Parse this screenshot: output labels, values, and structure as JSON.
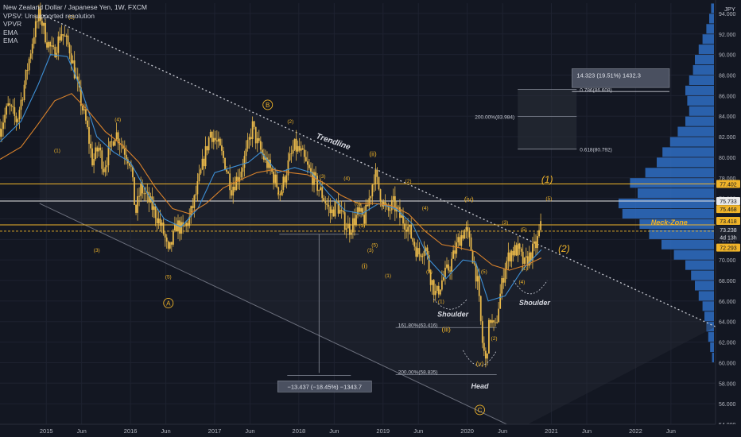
{
  "legend": {
    "title": "New Zealand Dollar / Japanese Yen, 1W, FXCM",
    "indicators": [
      "VPSV: Unsupported resolution",
      "VPVR",
      "EMA",
      "EMA"
    ]
  },
  "currency": "JPY",
  "colors": {
    "background": "#131722",
    "candle": "#e8b84a",
    "ema_fast": "#3d8fd6",
    "ema_slow": "#d9822b",
    "level_line": "#f0b429",
    "white_line": "#e8e8e8",
    "trendline": "#c8cad2",
    "volume_profile": "#2f6fc4",
    "label_gold": "#f0b429",
    "measure_box": "#5b6170"
  },
  "chart_data": {
    "type": "candlestick",
    "title": "New Zealand Dollar / Japanese Yen, 1W, FXCM",
    "ylim": [
      54,
      95
    ],
    "y_ticks": [
      "94.000",
      "92.000",
      "90.000",
      "88.000",
      "86.000",
      "84.000",
      "82.000",
      "80.000",
      "78.000",
      "76.000",
      "74.000",
      "72.000",
      "70.000",
      "68.000",
      "66.000",
      "64.000",
      "62.000",
      "60.000",
      "58.000",
      "56.000",
      "54.000"
    ],
    "x_ticks": [
      "2015",
      "Jun",
      "2016",
      "Jun",
      "2017",
      "Jun",
      "2018",
      "Jun",
      "2019",
      "Jun",
      "2020",
      "Jun",
      "2021",
      "Jun",
      "2022",
      "Jun"
    ],
    "x_tick_positions": [
      2015.0,
      2015.42,
      2016.0,
      2016.42,
      2017.0,
      2017.42,
      2018.0,
      2018.42,
      2019.0,
      2019.42,
      2020.0,
      2020.42,
      2021.0,
      2021.42,
      2022.0,
      2022.42
    ],
    "xlim": [
      2014.45,
      2022.95
    ],
    "price_path": [
      [
        2014.45,
        82.8
      ],
      [
        2014.55,
        85.0
      ],
      [
        2014.65,
        83.5
      ],
      [
        2014.75,
        87.5
      ],
      [
        2014.85,
        92.0
      ],
      [
        2014.92,
        94.0
      ],
      [
        2015.0,
        91.5
      ],
      [
        2015.08,
        90.0
      ],
      [
        2015.18,
        92.2
      ],
      [
        2015.28,
        90.5
      ],
      [
        2015.38,
        86.5
      ],
      [
        2015.48,
        83.0
      ],
      [
        2015.55,
        79.5
      ],
      [
        2015.62,
        81.0
      ],
      [
        2015.68,
        79.0
      ],
      [
        2015.75,
        80.6
      ],
      [
        2015.82,
        82.5
      ],
      [
        2015.9,
        81.2
      ],
      [
        2016.0,
        79.5
      ],
      [
        2016.06,
        74.5
      ],
      [
        2016.12,
        77.0
      ],
      [
        2016.2,
        76.0
      ],
      [
        2016.3,
        74.5
      ],
      [
        2016.4,
        72.5
      ],
      [
        2016.45,
        70.5
      ],
      [
        2016.55,
        73.5
      ],
      [
        2016.62,
        72.8
      ],
      [
        2016.7,
        74.0
      ],
      [
        2016.78,
        76.5
      ],
      [
        2016.85,
        79.0
      ],
      [
        2016.95,
        82.5
      ],
      [
        2017.05,
        81.0
      ],
      [
        2017.12,
        79.5
      ],
      [
        2017.2,
        77.0
      ],
      [
        2017.3,
        78.5
      ],
      [
        2017.38,
        80.5
      ],
      [
        2017.45,
        83.0
      ],
      [
        2017.5,
        81.5
      ],
      [
        2017.58,
        80.0
      ],
      [
        2017.68,
        78.5
      ],
      [
        2017.78,
        76.5
      ],
      [
        2017.88,
        79.5
      ],
      [
        2017.95,
        81.0
      ],
      [
        2018.02,
        80.5
      ],
      [
        2018.1,
        79.0
      ],
      [
        2018.2,
        77.5
      ],
      [
        2018.3,
        76.0
      ],
      [
        2018.38,
        74.5
      ],
      [
        2018.45,
        75.5
      ],
      [
        2018.52,
        74.0
      ],
      [
        2018.6,
        73.0
      ],
      [
        2018.7,
        74.5
      ],
      [
        2018.78,
        74.0
      ],
      [
        2018.85,
        76.5
      ],
      [
        2018.9,
        78.5
      ],
      [
        2018.98,
        76.0
      ],
      [
        2019.05,
        74.5
      ],
      [
        2019.12,
        75.5
      ],
      [
        2019.2,
        74.2
      ],
      [
        2019.28,
        73.5
      ],
      [
        2019.35,
        72.0
      ],
      [
        2019.42,
        70.5
      ],
      [
        2019.5,
        71.5
      ],
      [
        2019.56,
        68.5
      ],
      [
        2019.63,
        66.5
      ],
      [
        2019.7,
        68.0
      ],
      [
        2019.8,
        69.5
      ],
      [
        2019.9,
        72.0
      ],
      [
        2019.98,
        73.0
      ],
      [
        2020.05,
        71.0
      ],
      [
        2020.12,
        68.0
      ],
      [
        2020.18,
        62.0
      ],
      [
        2020.22,
        60.0
      ],
      [
        2020.27,
        64.5
      ],
      [
        2020.33,
        63.0
      ],
      [
        2020.38,
        66.0
      ],
      [
        2020.45,
        69.5
      ],
      [
        2020.52,
        70.8
      ],
      [
        2020.6,
        71.0
      ],
      [
        2020.68,
        69.5
      ],
      [
        2020.75,
        70.5
      ],
      [
        2020.82,
        71.5
      ],
      [
        2020.88,
        73.4
      ]
    ],
    "series": [
      {
        "name": "EMA",
        "values": [
          [
            2014.45,
            81.5
          ],
          [
            2014.7,
            83.5
          ],
          [
            2014.9,
            87.0
          ],
          [
            2015.05,
            90.0
          ],
          [
            2015.25,
            89.8
          ],
          [
            2015.42,
            86.5
          ],
          [
            2015.6,
            82.0
          ],
          [
            2015.8,
            80.5
          ],
          [
            2016.0,
            79.5
          ],
          [
            2016.2,
            76.5
          ],
          [
            2016.4,
            74.0
          ],
          [
            2016.6,
            73.2
          ],
          [
            2016.8,
            75.0
          ],
          [
            2017.0,
            78.5
          ],
          [
            2017.2,
            79.0
          ],
          [
            2017.4,
            79.5
          ],
          [
            2017.55,
            80.5
          ],
          [
            2017.75,
            78.5
          ],
          [
            2017.95,
            79.0
          ],
          [
            2018.15,
            78.5
          ],
          [
            2018.35,
            76.5
          ],
          [
            2018.55,
            74.8
          ],
          [
            2018.75,
            74.5
          ],
          [
            2018.95,
            75.5
          ],
          [
            2019.15,
            75.0
          ],
          [
            2019.35,
            73.5
          ],
          [
            2019.55,
            70.0
          ],
          [
            2019.75,
            68.2
          ],
          [
            2019.95,
            70.0
          ],
          [
            2020.1,
            69.8
          ],
          [
            2020.25,
            66.0
          ],
          [
            2020.45,
            66.5
          ],
          [
            2020.65,
            69.0
          ],
          [
            2020.88,
            71.0
          ]
        ]
      },
      {
        "name": "EMA",
        "values": [
          [
            2014.45,
            79.8
          ],
          [
            2014.7,
            81.0
          ],
          [
            2014.9,
            83.2
          ],
          [
            2015.1,
            85.5
          ],
          [
            2015.3,
            86.2
          ],
          [
            2015.5,
            84.5
          ],
          [
            2015.7,
            82.5
          ],
          [
            2015.9,
            81.2
          ],
          [
            2016.1,
            79.5
          ],
          [
            2016.3,
            77.0
          ],
          [
            2016.5,
            75.0
          ],
          [
            2016.7,
            74.5
          ],
          [
            2016.9,
            75.5
          ],
          [
            2017.1,
            77.0
          ],
          [
            2017.3,
            77.8
          ],
          [
            2017.5,
            78.5
          ],
          [
            2017.7,
            78.8
          ],
          [
            2017.9,
            78.5
          ],
          [
            2018.1,
            78.3
          ],
          [
            2018.3,
            77.5
          ],
          [
            2018.5,
            76.3
          ],
          [
            2018.7,
            75.5
          ],
          [
            2018.9,
            75.5
          ],
          [
            2019.1,
            75.3
          ],
          [
            2019.3,
            74.5
          ],
          [
            2019.5,
            72.8
          ],
          [
            2019.7,
            71.5
          ],
          [
            2019.9,
            71.2
          ],
          [
            2020.1,
            70.8
          ],
          [
            2020.3,
            69.5
          ],
          [
            2020.5,
            69.0
          ],
          [
            2020.7,
            69.5
          ],
          [
            2020.88,
            70.2
          ]
        ]
      }
    ],
    "volume_profile": [
      [
        94.5,
        3
      ],
      [
        93.5,
        5
      ],
      [
        92.5,
        8
      ],
      [
        91.5,
        12
      ],
      [
        90.5,
        16
      ],
      [
        89.5,
        20
      ],
      [
        88.5,
        22
      ],
      [
        87.5,
        26
      ],
      [
        86.5,
        30
      ],
      [
        85.5,
        28
      ],
      [
        84.5,
        26
      ],
      [
        83.5,
        30
      ],
      [
        82.5,
        38
      ],
      [
        81.5,
        46
      ],
      [
        80.5,
        54
      ],
      [
        79.5,
        60
      ],
      [
        78.5,
        72
      ],
      [
        77.5,
        88
      ],
      [
        76.5,
        80
      ],
      [
        75.5,
        100
      ],
      [
        74.5,
        96
      ],
      [
        73.5,
        78
      ],
      [
        72.5,
        68
      ],
      [
        71.5,
        55
      ],
      [
        70.5,
        42
      ],
      [
        69.5,
        30
      ],
      [
        68.5,
        24
      ],
      [
        67.5,
        20
      ],
      [
        66.5,
        16
      ],
      [
        65.5,
        12
      ],
      [
        64.5,
        10
      ],
      [
        63.5,
        8
      ],
      [
        62.5,
        6
      ],
      [
        61.5,
        4
      ],
      [
        60.5,
        2
      ]
    ],
    "horizontal_levels": [
      {
        "price": 77.402,
        "label": "77.402",
        "kind": "gold"
      },
      {
        "price": 75.733,
        "label": "75.733",
        "kind": "white"
      },
      {
        "price": 73.418,
        "label": "73.418",
        "kind": "gold"
      },
      {
        "price": 72.8,
        "label": "",
        "kind": "gold-dash"
      }
    ],
    "right_badges": [
      {
        "price": 77.402,
        "label": "77.402",
        "style": "gold"
      },
      {
        "price": 75.733,
        "label": "75.733",
        "style": "white"
      },
      {
        "price": 74.95,
        "label": "75.468",
        "style": "gold"
      },
      {
        "price": 73.8,
        "label": "73.418",
        "style": "gold"
      },
      {
        "price": 72.95,
        "label": "73.238",
        "style": "dark"
      },
      {
        "price": 72.2,
        "label": "4d 13h",
        "style": "dark"
      },
      {
        "price": 71.2,
        "label": "72.293",
        "style": "gold"
      }
    ],
    "channel": {
      "upper": [
        [
          2014.92,
          94.0
        ],
        [
          2022.95,
          63.5
        ]
      ],
      "lower": [
        [
          2014.92,
          75.5
        ],
        [
          2020.6,
          53.5
        ]
      ]
    },
    "measure_projection": {
      "box_x": [
        2022.0,
        2022.95
      ],
      "box_y": [
        86.4,
        88.0
      ],
      "label": "14.323 (19.51%) 1432.3",
      "fib_box_x": [
        2020.6,
        2021.3
      ],
      "fib_levels": [
        {
          "price": 86.608,
          "label": "0.786(86.608)"
        },
        {
          "price": 83.984,
          "label": "200.00%(83.984)"
        },
        {
          "price": 80.792,
          "label": "0.618(80.792)"
        }
      ]
    },
    "measure_down": {
      "x": 2018.24,
      "from": 72.5,
      "to": 59.0,
      "label": "−13.437 (−18.45%) −1343.7"
    },
    "fib_lower": [
      {
        "price": 63.416,
        "label": "161.80%(63.416)"
      },
      {
        "price": 58.835,
        "label": "200.00%(58.835)"
      }
    ],
    "annotations": [
      {
        "text": "(2)",
        "x": 2015.3,
        "y": 93.5,
        "kind": "wave"
      },
      {
        "text": "(1)",
        "x": 2015.13,
        "y": 80.5,
        "kind": "wave"
      },
      {
        "text": "(4)",
        "x": 2015.85,
        "y": 83.5,
        "kind": "wave"
      },
      {
        "text": "(3)",
        "x": 2015.6,
        "y": 70.8,
        "kind": "wave"
      },
      {
        "text": "(5)",
        "x": 2016.45,
        "y": 68.2,
        "kind": "wave"
      },
      {
        "text": "A",
        "x": 2016.45,
        "y": 65.8,
        "kind": "circle"
      },
      {
        "text": "B",
        "x": 2017.63,
        "y": 85.1,
        "kind": "circle"
      },
      {
        "text": "(2)",
        "x": 2017.9,
        "y": 83.3,
        "kind": "wave"
      },
      {
        "text": "(1)",
        "x": 2017.78,
        "y": 76.3,
        "kind": "wave"
      },
      {
        "text": "(3)",
        "x": 2018.28,
        "y": 78.0,
        "kind": "wave"
      },
      {
        "text": "(4)",
        "x": 2018.57,
        "y": 77.8,
        "kind": "wave"
      },
      {
        "text": "(5)",
        "x": 2018.7,
        "y": 75.3,
        "kind": "wave"
      },
      {
        "text": "(1)",
        "x": 2018.75,
        "y": 73.2,
        "kind": "wave"
      },
      {
        "text": "(3)",
        "x": 2018.85,
        "y": 70.8,
        "kind": "wave"
      },
      {
        "text": "(ii)",
        "x": 2018.88,
        "y": 80.1,
        "kind": "roman"
      },
      {
        "text": "(2)",
        "x": 2019.3,
        "y": 77.5,
        "kind": "wave"
      },
      {
        "text": "(5)",
        "x": 2018.9,
        "y": 71.3,
        "kind": "wave"
      },
      {
        "text": "(i)",
        "x": 2018.78,
        "y": 69.2,
        "kind": "roman"
      },
      {
        "text": "(1)",
        "x": 2019.06,
        "y": 68.3,
        "kind": "wave"
      },
      {
        "text": "(4)",
        "x": 2019.5,
        "y": 74.9,
        "kind": "wave"
      },
      {
        "text": "(3)",
        "x": 2019.55,
        "y": 68.7,
        "kind": "wave"
      },
      {
        "text": "(iv)",
        "x": 2020.02,
        "y": 75.7,
        "kind": "roman"
      },
      {
        "text": "(5)",
        "x": 2020.2,
        "y": 68.7,
        "kind": "wave"
      },
      {
        "text": "(3)",
        "x": 2020.45,
        "y": 73.5,
        "kind": "wave"
      },
      {
        "text": "(iii)",
        "x": 2019.75,
        "y": 63.0,
        "kind": "roman"
      },
      {
        "text": "(1)",
        "x": 2019.69,
        "y": 65.8,
        "kind": "wave"
      },
      {
        "text": "(2)",
        "x": 2020.32,
        "y": 62.2,
        "kind": "wave"
      },
      {
        "text": "(4)",
        "x": 2020.65,
        "y": 67.7,
        "kind": "wave"
      },
      {
        "text": "(5)",
        "x": 2020.67,
        "y": 72.8,
        "kind": "wave"
      },
      {
        "text": "(1)",
        "x": 2020.68,
        "y": 69.0,
        "kind": "wave"
      },
      {
        "text": "(v)",
        "x": 2020.15,
        "y": 59.7,
        "kind": "roman"
      },
      {
        "text": "C",
        "x": 2020.15,
        "y": 55.4,
        "kind": "circle"
      },
      {
        "text": "(1)",
        "x": 2020.95,
        "y": 77.5,
        "kind": "bigwave"
      },
      {
        "text": "(5)",
        "x": 2020.97,
        "y": 75.8,
        "kind": "wave"
      },
      {
        "text": "(2)",
        "x": 2021.15,
        "y": 70.8,
        "kind": "bigwave"
      },
      {
        "text": "Trendline",
        "x": 2018.4,
        "y": 81.3,
        "kind": "trendline"
      },
      {
        "text": "Neck-Zone",
        "x": 2022.4,
        "y": 73.4,
        "kind": "neck"
      },
      {
        "text": "Shoulder",
        "x": 2019.83,
        "y": 64.5,
        "kind": "label"
      },
      {
        "text": "Shoulder",
        "x": 2020.8,
        "y": 65.6,
        "kind": "label"
      },
      {
        "text": "Head",
        "x": 2020.15,
        "y": 57.5,
        "kind": "label"
      }
    ]
  }
}
